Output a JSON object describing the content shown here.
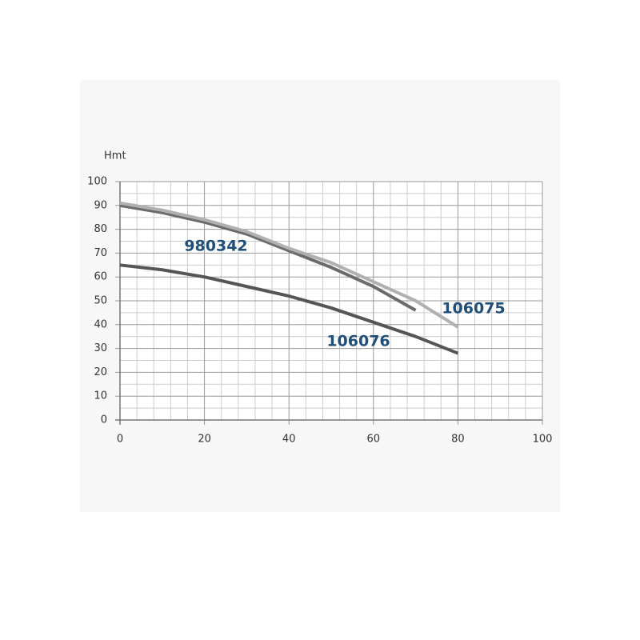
{
  "chart_data": {
    "type": "line",
    "ylabel": "Hmt",
    "series": [
      {
        "name": "980342",
        "color": "#6b6b6b",
        "x": [
          0,
          10,
          20,
          30,
          40,
          50,
          60,
          70
        ],
        "values": [
          90,
          87,
          83,
          78,
          71,
          64,
          56,
          46
        ]
      },
      {
        "name": "106075",
        "color": "#b0b0b0",
        "x": [
          0,
          10,
          20,
          30,
          40,
          50,
          60,
          70,
          80
        ],
        "values": [
          91,
          88,
          84,
          79,
          72,
          66,
          58,
          50,
          39
        ]
      },
      {
        "name": "106076",
        "color": "#555555",
        "x": [
          0,
          10,
          20,
          30,
          40,
          50,
          60,
          70,
          80
        ],
        "values": [
          65,
          63,
          60,
          56,
          52,
          47,
          41,
          35,
          28
        ]
      }
    ],
    "xlim": [
      0,
      100
    ],
    "xticks": [
      0,
      20,
      40,
      60,
      80,
      100
    ],
    "ylim": [
      0,
      100
    ],
    "yticks": [
      0,
      10,
      20,
      30,
      40,
      50,
      60,
      70,
      80,
      90,
      100
    ],
    "grid": true
  }
}
